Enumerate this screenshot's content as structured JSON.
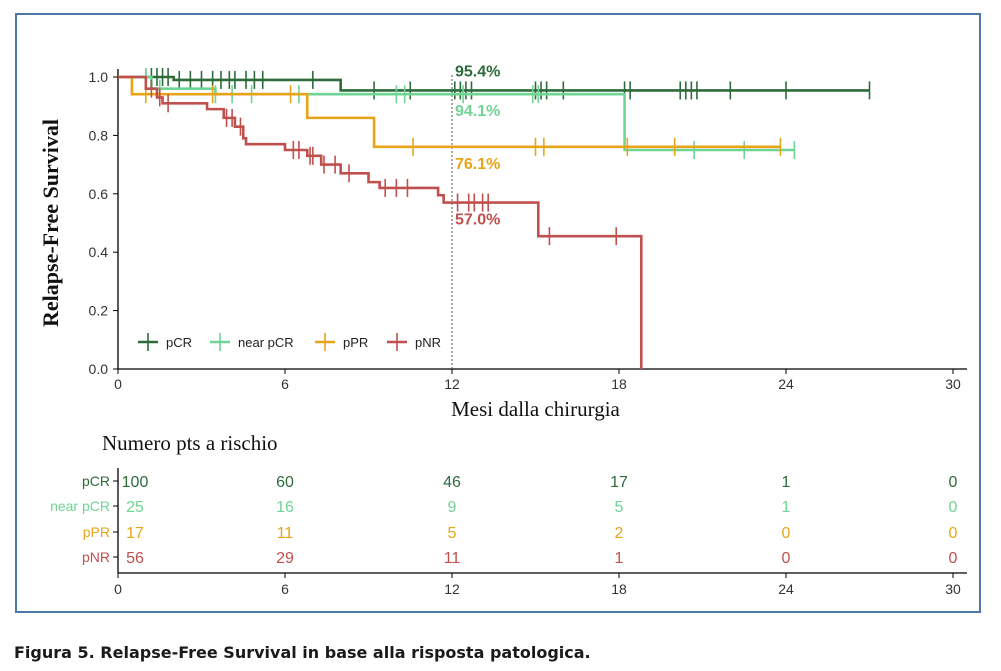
{
  "caption": "Figura 5. Relapse-Free Survival in base alla risposta patologica.",
  "chart_data": {
    "type": "line",
    "ylabel": "Relapse-Free Survival",
    "xlabel": "Mesi dalla chirurgia",
    "xlim": [
      0,
      30
    ],
    "ylim": [
      0,
      1.0
    ],
    "x_ticks": [
      0,
      6,
      12,
      18,
      24,
      30
    ],
    "y_ticks": [
      0.0,
      0.2,
      0.4,
      0.6,
      0.8,
      1.0
    ],
    "y_tick_labels": [
      "0.0",
      "0.2",
      "0.4",
      "0.6",
      "0.8",
      "1.0"
    ],
    "grid": false,
    "legend_position": "bottom-left",
    "reference_line_x": 12,
    "series": [
      {
        "name": "pCR",
        "color": "#2e6b3a",
        "steps": [
          [
            0,
            1.0
          ],
          [
            2,
            0.99
          ],
          [
            8,
            0.954
          ],
          [
            27,
            0.954
          ]
        ],
        "censor": [
          1.0,
          1.2,
          1.4,
          1.6,
          1.8,
          2.2,
          2.6,
          3.0,
          3.4,
          3.7,
          4.0,
          4.2,
          4.6,
          4.9,
          5.2,
          7.0,
          9.2,
          10.5,
          12.1,
          12.3,
          12.5,
          12.7,
          15.0,
          15.2,
          15.4,
          16.0,
          18.2,
          18.4,
          20.2,
          20.4,
          20.6,
          20.8,
          22.0,
          24.0,
          27.0
        ],
        "annotation": {
          "text": "95.4%",
          "x": 12,
          "y": 0.954,
          "placement": "above"
        }
      },
      {
        "name": "near pCR",
        "color": "#6fd494",
        "steps": [
          [
            0,
            1.0
          ],
          [
            1.2,
            0.96
          ],
          [
            3.5,
            0.941
          ],
          [
            18.2,
            0.941
          ],
          [
            18.2,
            0.75
          ],
          [
            24.3,
            0.75
          ]
        ],
        "censor": [
          1.0,
          1.5,
          3.5,
          4.1,
          4.8,
          6.5,
          10.0,
          10.3,
          12.4,
          14.9,
          15.1,
          20.7,
          22.5,
          24.3
        ],
        "annotation": {
          "text": "94.1%",
          "x": 12,
          "y": 0.941,
          "placement": "below"
        }
      },
      {
        "name": "pPR",
        "color": "#e8a417",
        "steps": [
          [
            0,
            1.0
          ],
          [
            0.5,
            0.941
          ],
          [
            6.8,
            0.941
          ],
          [
            6.8,
            0.86
          ],
          [
            9.2,
            0.86
          ],
          [
            9.2,
            0.761
          ],
          [
            23.8,
            0.761
          ]
        ],
        "censor": [
          1.0,
          3.4,
          6.2,
          10.6,
          15.0,
          15.3,
          18.3,
          20.0,
          23.8
        ],
        "annotation": {
          "text": "76.1%",
          "x": 12,
          "y": 0.761,
          "placement": "below"
        }
      },
      {
        "name": "pNR",
        "color": "#c0504d",
        "steps": [
          [
            0,
            1.0
          ],
          [
            1.0,
            0.96
          ],
          [
            1.4,
            0.93
          ],
          [
            1.6,
            0.91
          ],
          [
            3.2,
            0.89
          ],
          [
            3.8,
            0.86
          ],
          [
            4.2,
            0.83
          ],
          [
            4.5,
            0.79
          ],
          [
            4.6,
            0.77
          ],
          [
            6.0,
            0.75
          ],
          [
            6.8,
            0.73
          ],
          [
            7.3,
            0.7
          ],
          [
            8.0,
            0.67
          ],
          [
            9.0,
            0.64
          ],
          [
            9.4,
            0.62
          ],
          [
            11.5,
            0.595
          ],
          [
            11.7,
            0.57
          ],
          [
            15.1,
            0.57
          ],
          [
            15.1,
            0.455
          ],
          [
            18.8,
            0.455
          ],
          [
            18.8,
            0.0
          ]
        ],
        "censor": [
          1.2,
          1.5,
          1.8,
          3.9,
          4.1,
          4.4,
          6.3,
          6.5,
          6.9,
          7.0,
          7.4,
          7.8,
          8.3,
          9.6,
          10.0,
          10.4,
          12.2,
          12.6,
          12.8,
          13.1,
          13.3,
          15.5,
          17.9
        ],
        "annotation": {
          "text": "57.0%",
          "x": 12,
          "y": 0.57,
          "placement": "below"
        }
      }
    ],
    "risk_table": {
      "title": "Numero pts a rischio",
      "times": [
        0,
        6,
        12,
        18,
        24,
        30
      ],
      "rows": [
        {
          "label": "pCR",
          "color": "#2e6b3a",
          "values": [
            "100",
            "60",
            "46",
            "17",
            "1",
            "0"
          ]
        },
        {
          "label": "near pCR",
          "color": "#6fd494",
          "values": [
            "25",
            "16",
            "9",
            "5",
            "1",
            "0"
          ]
        },
        {
          "label": "pPR",
          "color": "#e8a417",
          "values": [
            "17",
            "11",
            "5",
            "2",
            "0",
            "0"
          ]
        },
        {
          "label": "pNR",
          "color": "#c0504d",
          "values": [
            "56",
            "29",
            "11",
            "1",
            "0",
            "0"
          ]
        }
      ],
      "x_tick_labels": [
        "0",
        "6",
        "12",
        "18",
        "24",
        "30"
      ]
    }
  }
}
